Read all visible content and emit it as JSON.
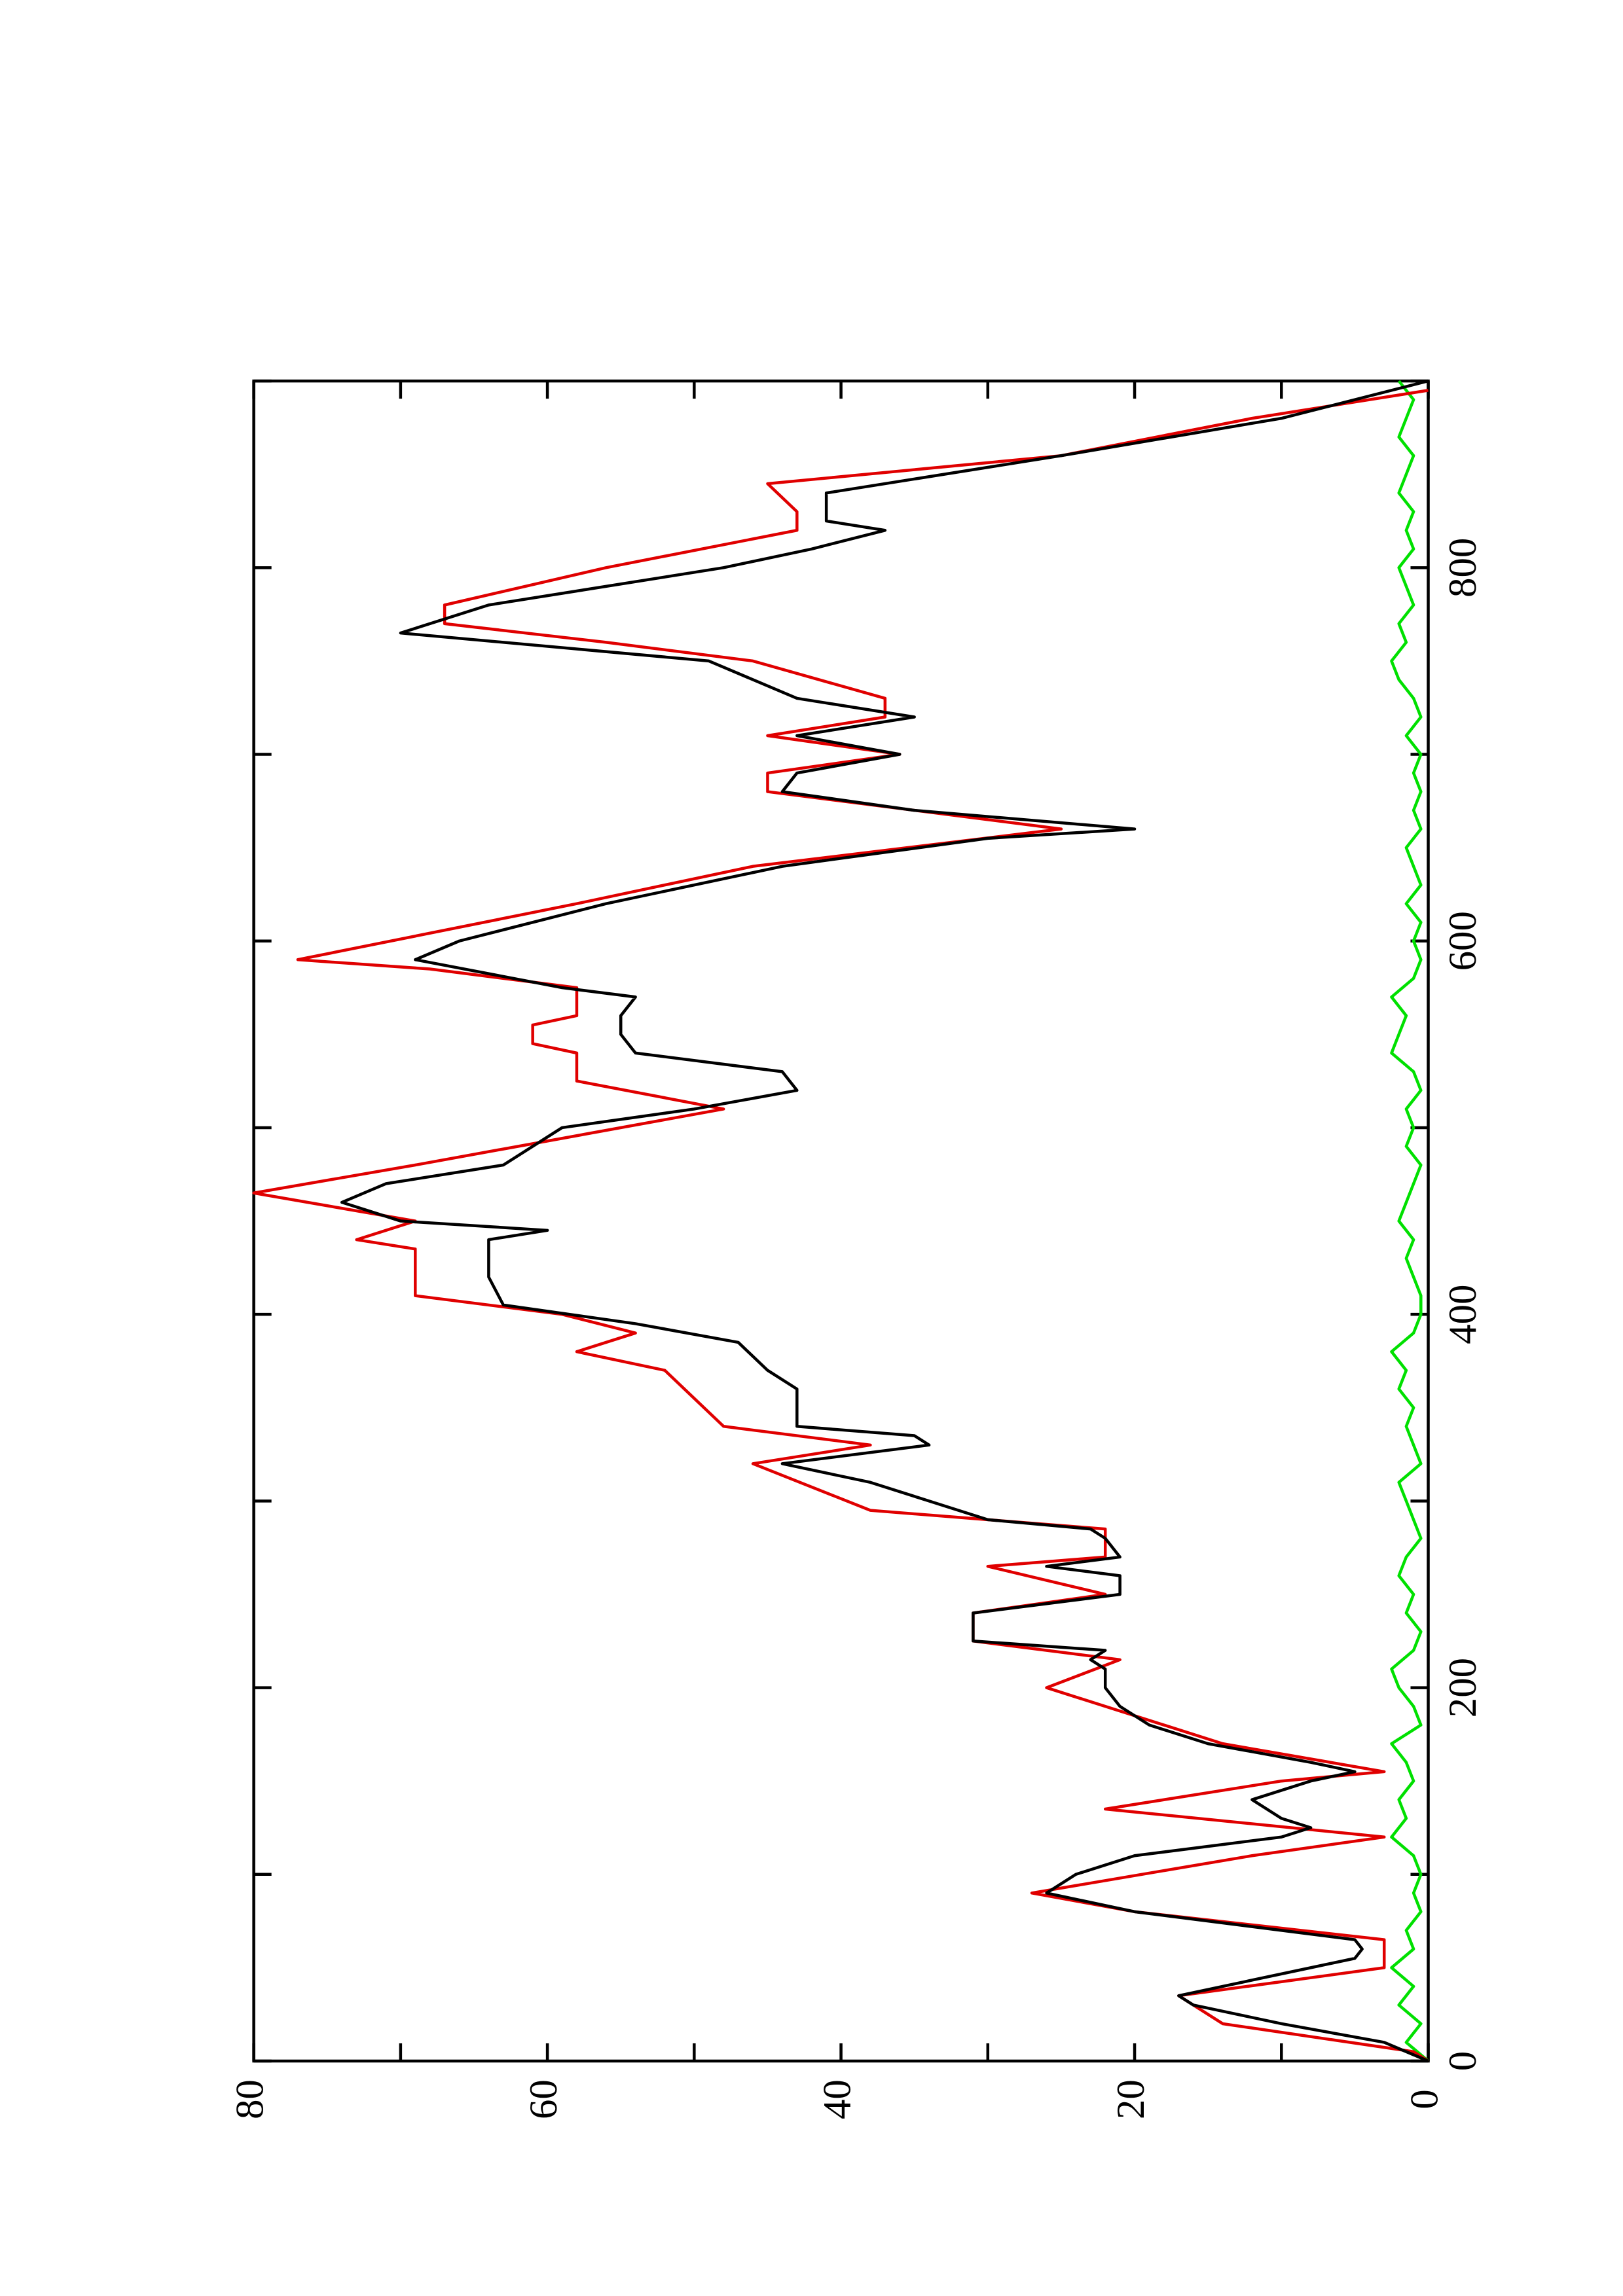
{
  "chart_data": {
    "type": "line",
    "xlim": [
      0,
      900
    ],
    "ylim": [
      0,
      80
    ],
    "xticks": [
      0,
      200,
      400,
      600,
      800
    ],
    "yticks": [
      0,
      20,
      40,
      60,
      80
    ],
    "xminorticks": [
      100,
      300,
      500,
      700,
      900
    ],
    "yminorticks": [
      10,
      30,
      50,
      70
    ],
    "rotated": true,
    "series": [
      {
        "color": "#000000",
        "x": [
          0,
          10,
          20,
          30,
          35,
          40,
          50,
          55,
          60,
          65,
          70,
          80,
          90,
          95,
          100,
          110,
          120,
          125,
          130,
          140,
          150,
          155,
          160,
          170,
          180,
          190,
          200,
          210,
          215,
          220,
          225,
          240,
          250,
          260,
          265,
          270,
          280,
          285,
          290,
          300,
          310,
          320,
          330,
          335,
          340,
          360,
          370,
          385,
          395,
          405,
          420,
          440,
          445,
          450,
          460,
          470,
          480,
          500,
          510,
          520,
          530,
          540,
          550,
          560,
          570,
          575,
          590,
          600,
          620,
          640,
          655,
          660,
          670,
          680,
          690,
          700,
          710,
          720,
          730,
          750,
          765,
          780,
          800,
          810,
          820,
          825,
          840,
          860,
          880,
          900
        ],
        "values": [
          0,
          3,
          10,
          16,
          17,
          14,
          8,
          5,
          4.5,
          5,
          10,
          20,
          26,
          25,
          24,
          20,
          10,
          8,
          10,
          12,
          8,
          5,
          8,
          15,
          19,
          21,
          22,
          22,
          23,
          22,
          31,
          31,
          21,
          21,
          26,
          21,
          22,
          23,
          30,
          34,
          38,
          44,
          34,
          35,
          43,
          43,
          45,
          47,
          54,
          63,
          64,
          64,
          60,
          70,
          74,
          71,
          63,
          59,
          50,
          43,
          44,
          54,
          55,
          55,
          54,
          59,
          69,
          66,
          56,
          44,
          30,
          20,
          35,
          44,
          43,
          36,
          43,
          35,
          43,
          49,
          70,
          64,
          48,
          42,
          37,
          41,
          41,
          25,
          10,
          0
        ]
      },
      {
        "color": "#e00000",
        "x": [
          0,
          5,
          20,
          35,
          50,
          65,
          80,
          90,
          110,
          120,
          135,
          150,
          155,
          170,
          185,
          200,
          215,
          225,
          240,
          250,
          265,
          270,
          285,
          295,
          320,
          330,
          340,
          370,
          380,
          390,
          400,
          410,
          435,
          440,
          450,
          465,
          480,
          510,
          525,
          540,
          545,
          555,
          560,
          575,
          585,
          590,
          620,
          640,
          660,
          680,
          690,
          700,
          710,
          720,
          730,
          750,
          760,
          770,
          780,
          800,
          820,
          830,
          845,
          860,
          880,
          895
        ],
        "values": [
          0,
          1,
          14,
          17,
          3,
          3,
          20,
          27,
          12,
          3,
          22,
          10,
          3,
          14,
          20,
          26,
          21,
          31,
          31,
          22,
          30,
          22,
          22,
          38,
          46,
          38,
          48,
          52,
          58,
          54,
          59,
          69,
          69,
          73,
          69,
          80,
          69,
          48,
          58,
          58,
          61,
          61,
          58,
          58,
          68,
          77,
          58,
          46,
          25,
          45,
          45,
          36,
          45,
          37,
          37,
          46,
          56,
          67,
          67,
          56,
          43,
          43,
          45,
          25,
          12,
          0
        ]
      },
      {
        "color": "#00e000",
        "x": [
          0,
          10,
          20,
          30,
          40,
          50,
          60,
          70,
          80,
          90,
          100,
          110,
          120,
          130,
          140,
          150,
          160,
          170,
          180,
          190,
          200,
          210,
          220,
          230,
          240,
          250,
          260,
          270,
          280,
          290,
          300,
          310,
          320,
          330,
          340,
          350,
          360,
          370,
          380,
          390,
          400,
          410,
          420,
          430,
          440,
          450,
          460,
          470,
          480,
          490,
          500,
          510,
          520,
          530,
          540,
          550,
          560,
          570,
          580,
          590,
          600,
          610,
          620,
          630,
          640,
          650,
          660,
          670,
          680,
          690,
          700,
          710,
          720,
          730,
          740,
          750,
          760,
          770,
          780,
          790,
          800,
          810,
          820,
          830,
          840,
          850,
          860,
          870,
          880,
          890,
          900
        ],
        "values": [
          0,
          1.5,
          0.5,
          2,
          1,
          2.5,
          1,
          1.5,
          0.5,
          1,
          0.5,
          1,
          2.5,
          1.5,
          2,
          1,
          1.5,
          2.5,
          0.5,
          1,
          2,
          2.5,
          1,
          0.5,
          1.5,
          1,
          2,
          1.5,
          0.5,
          1,
          1.5,
          2,
          0.5,
          1,
          1.5,
          1,
          2,
          1.5,
          2.5,
          1,
          0.5,
          0.5,
          1,
          1.5,
          1,
          2,
          1.5,
          1,
          0.5,
          1.5,
          1,
          1.5,
          0.5,
          1,
          2.5,
          2,
          1.5,
          2.5,
          1,
          0.5,
          1,
          0.5,
          1.5,
          0.5,
          1,
          1.5,
          0.5,
          1,
          0.5,
          1,
          0.5,
          1.5,
          0.5,
          1,
          2,
          2.5,
          1.5,
          2,
          1,
          1.5,
          2,
          1,
          1.5,
          1,
          2,
          1.5,
          1,
          2,
          1.5,
          1,
          2
        ]
      }
    ]
  }
}
